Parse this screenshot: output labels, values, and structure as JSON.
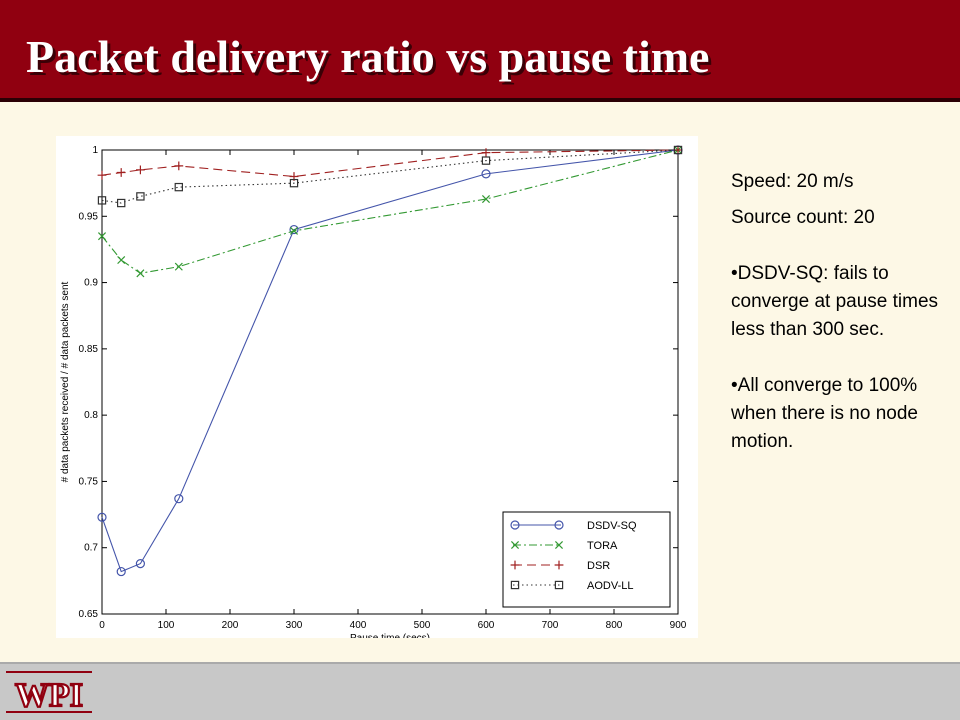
{
  "slide": {
    "title": "Packet delivery ratio vs pause time",
    "notes": {
      "speed": "Speed: 20 m/s",
      "source_count": "Source count: 20",
      "bullet1": "•DSDV-SQ: fails to converge at pause times less than 300 sec.",
      "bullet2": "•All converge to 100% when there is no node motion."
    },
    "logo_text": "WPI"
  },
  "colors": {
    "title_bar": "#900010",
    "background": "#fdf8e6",
    "footer": "#c8c8c8"
  },
  "chart_data": {
    "type": "line",
    "xlabel": "Pause time (secs)",
    "ylabel": "# data packets received / # data packets sent",
    "xlim": [
      0,
      900
    ],
    "ylim": [
      0.65,
      1
    ],
    "x_ticks": [
      0,
      100,
      200,
      300,
      400,
      500,
      600,
      700,
      800,
      900
    ],
    "y_ticks": [
      0.65,
      0.7,
      0.75,
      0.8,
      0.85,
      0.9,
      0.95,
      1
    ],
    "grid": false,
    "legend_position": "bottom-right",
    "x": [
      0,
      30,
      60,
      120,
      300,
      600,
      900
    ],
    "series": [
      {
        "name": "DSDV-SQ",
        "color": "#4455aa",
        "dash": "solid",
        "marker": "circle",
        "values": [
          0.723,
          0.682,
          0.688,
          0.737,
          0.94,
          0.982,
          1.0
        ]
      },
      {
        "name": "TORA",
        "color": "#339933",
        "dash": "dashdot",
        "marker": "x",
        "values": [
          0.935,
          0.917,
          0.907,
          0.912,
          0.939,
          0.963,
          1.0
        ]
      },
      {
        "name": "DSR",
        "color": "#a02020",
        "dash": "dashed",
        "marker": "plus",
        "values": [
          0.981,
          0.983,
          0.985,
          0.988,
          0.98,
          0.998,
          1.0
        ]
      },
      {
        "name": "AODV-LL",
        "color": "#333333",
        "dash": "dotted",
        "marker": "square",
        "values": [
          0.962,
          0.96,
          0.965,
          0.972,
          0.975,
          0.992,
          1.0
        ]
      }
    ]
  }
}
